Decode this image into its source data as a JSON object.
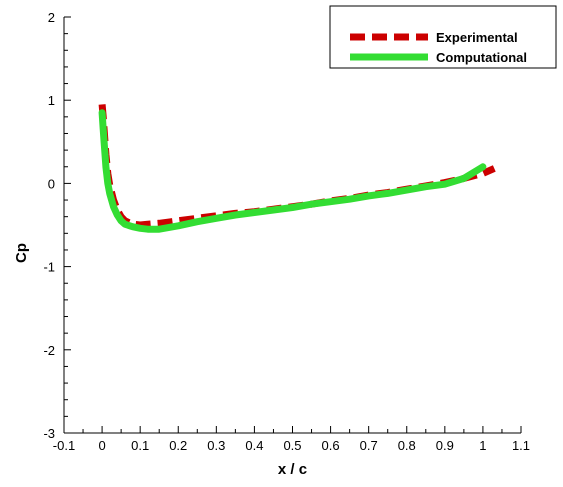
{
  "chart_data": {
    "type": "line",
    "title": "",
    "xlabel": "x / c",
    "ylabel": "Cp",
    "xlim": [
      -0.1,
      1.1
    ],
    "ylim": [
      -3,
      2
    ],
    "xticks": [
      "-0.1",
      "0",
      "0.1",
      "0.2",
      "0.3",
      "0.4",
      "0.5",
      "0.6",
      "0.7",
      "0.8",
      "0.9",
      "1",
      "1.1"
    ],
    "yticks": [
      "-3",
      "-2",
      "-1",
      "0",
      "1",
      "2"
    ],
    "grid": false,
    "legend_position": "top-right",
    "series": [
      {
        "name": "Experimental",
        "color": "#cc0000",
        "style": "dashed",
        "x": [
          0.0,
          0.003,
          0.006,
          0.01,
          0.015,
          0.02,
          0.03,
          0.04,
          0.05,
          0.06,
          0.08,
          0.1,
          0.12,
          0.15,
          0.2,
          0.25,
          0.3,
          0.35,
          0.4,
          0.45,
          0.5,
          0.55,
          0.6,
          0.65,
          0.7,
          0.75,
          0.8,
          0.85,
          0.9,
          0.95,
          1.0,
          1.03
        ],
        "y": [
          0.95,
          0.8,
          0.6,
          0.35,
          0.12,
          -0.02,
          -0.2,
          -0.32,
          -0.4,
          -0.45,
          -0.49,
          -0.5,
          -0.49,
          -0.48,
          -0.45,
          -0.42,
          -0.39,
          -0.36,
          -0.34,
          -0.31,
          -0.28,
          -0.25,
          -0.21,
          -0.18,
          -0.14,
          -0.11,
          -0.07,
          -0.03,
          0.01,
          0.06,
          0.12,
          0.18
        ]
      },
      {
        "name": "Computational",
        "color": "#33dd33",
        "style": "solid",
        "x": [
          0.0,
          0.003,
          0.006,
          0.01,
          0.015,
          0.02,
          0.03,
          0.04,
          0.05,
          0.06,
          0.08,
          0.1,
          0.12,
          0.15,
          0.2,
          0.25,
          0.3,
          0.35,
          0.4,
          0.45,
          0.5,
          0.55,
          0.6,
          0.65,
          0.7,
          0.75,
          0.8,
          0.85,
          0.9,
          0.95,
          1.0
        ],
        "y": [
          0.85,
          0.65,
          0.45,
          0.2,
          0.0,
          -0.12,
          -0.28,
          -0.38,
          -0.45,
          -0.49,
          -0.52,
          -0.54,
          -0.55,
          -0.55,
          -0.51,
          -0.46,
          -0.42,
          -0.38,
          -0.35,
          -0.32,
          -0.29,
          -0.25,
          -0.22,
          -0.19,
          -0.15,
          -0.12,
          -0.08,
          -0.04,
          -0.01,
          0.06,
          0.2
        ]
      }
    ]
  }
}
